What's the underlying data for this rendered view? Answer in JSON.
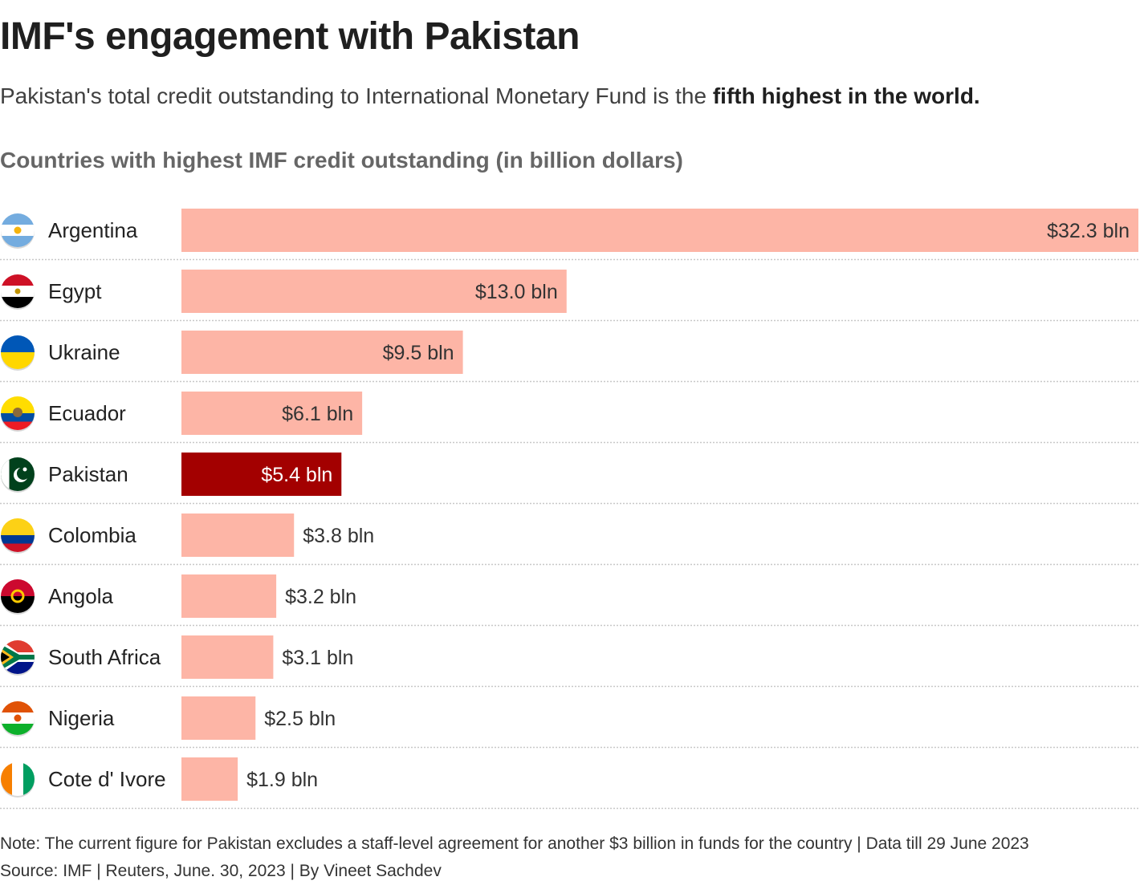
{
  "header": {
    "title": "IMF's engagement with Pakistan",
    "subtitle_plain": "Pakistan's total credit outstanding to International Monetary Fund is the ",
    "subtitle_bold": "fifth highest in the world."
  },
  "chart_data": {
    "type": "bar",
    "orientation": "horizontal",
    "title": "Countries with highest IMF credit outstanding (in billion dollars)",
    "xlabel": "",
    "ylabel": "",
    "xlim": [
      0,
      32.3
    ],
    "grid": false,
    "categories": [
      "Argentina",
      "Egypt",
      "Ukraine",
      "Ecuador",
      "Pakistan",
      "Colombia",
      "Angola",
      "South Africa",
      "Nigeria",
      "Cote d' Ivore"
    ],
    "values": [
      32.3,
      13.0,
      9.5,
      6.1,
      5.4,
      3.8,
      3.2,
      3.1,
      2.5,
      1.9
    ],
    "value_labels": [
      "$32.3 bln",
      "$13.0 bln",
      "$9.5 bln",
      "$6.1 bln",
      "$5.4 bln",
      "$3.8 bln",
      "$3.2 bln",
      "$3.1 bln",
      "$2.5 bln",
      "$1.9 bln"
    ],
    "highlight": "Pakistan",
    "colors": {
      "default": "#fdb5a6",
      "highlight": "#a30000"
    },
    "flags": [
      "argentina-flag-icon",
      "egypt-flag-icon",
      "ukraine-flag-icon",
      "ecuador-flag-icon",
      "pakistan-flag-icon",
      "colombia-flag-icon",
      "angola-flag-icon",
      "south-africa-flag-icon",
      "nigeria-flag-icon",
      "cote-divoire-flag-icon"
    ]
  },
  "footer": {
    "note": "Note: The current figure for Pakistan excludes a staff-level agreement for another $3 billion in funds for the country | Data till 29 June 2023",
    "source": "Source: IMF | Reuters, June. 30, 2023 | By Vineet Sachdev"
  }
}
